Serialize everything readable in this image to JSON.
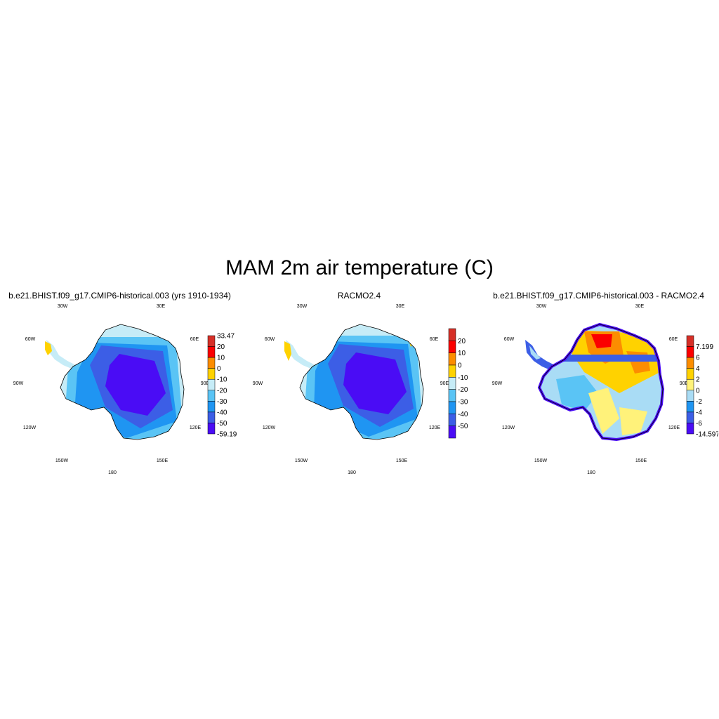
{
  "figure": {
    "title": "MAM 2m air temperature (C)"
  },
  "panels": [
    {
      "title": "b.e21.BHIST.f09_g17.CMIP6-historical.003 (yrs 1910-1934)",
      "lon_labels": [
        "30W",
        "30E",
        "60W",
        "60E",
        "90W",
        "90E",
        "120W",
        "120E",
        "150W",
        "150E",
        "180"
      ],
      "colorbar": {
        "labels": [
          "33.47",
          "20",
          "10",
          "0",
          "-10",
          "-20",
          "-30",
          "-40",
          "-50",
          "-59.19"
        ],
        "colors": [
          "#d62f27",
          "#fb0000",
          "#fc8d00",
          "#ffd200",
          "#c6ecf7",
          "#5ac4f5",
          "#1f95f2",
          "#3c5ee6",
          "#4a0cf5"
        ]
      }
    },
    {
      "title": "RACMO2.4",
      "lon_labels": [
        "30W",
        "30E",
        "60W",
        "60E",
        "90W",
        "90E",
        "120W",
        "120E",
        "150W",
        "150E",
        "180"
      ],
      "colorbar": {
        "labels": [
          "20",
          "10",
          "0",
          "-10",
          "-20",
          "-30",
          "-40",
          "-50"
        ],
        "colors": [
          "#d62f27",
          "#fb0000",
          "#fc8d00",
          "#ffd200",
          "#c6ecf7",
          "#5ac4f5",
          "#1f95f2",
          "#3c5ee6",
          "#4a0cf5"
        ]
      }
    },
    {
      "title": "b.e21.BHIST.f09_g17.CMIP6-historical.003 - RACMO2.4",
      "lon_labels": [
        "30W",
        "30E",
        "60W",
        "60E",
        "90W",
        "90E",
        "120W",
        "120E",
        "150W",
        "150E",
        "180"
      ],
      "colorbar": {
        "labels": [
          "7.199",
          "6",
          "4",
          "2",
          "0",
          "-2",
          "-4",
          "-6",
          "-14.597"
        ],
        "colors": [
          "#d62f27",
          "#fb0000",
          "#fc8d00",
          "#ffd200",
          "#fff27a",
          "#a9dcf5",
          "#1f95f2",
          "#3c5ee6",
          "#4a0cf5"
        ]
      }
    }
  ]
}
